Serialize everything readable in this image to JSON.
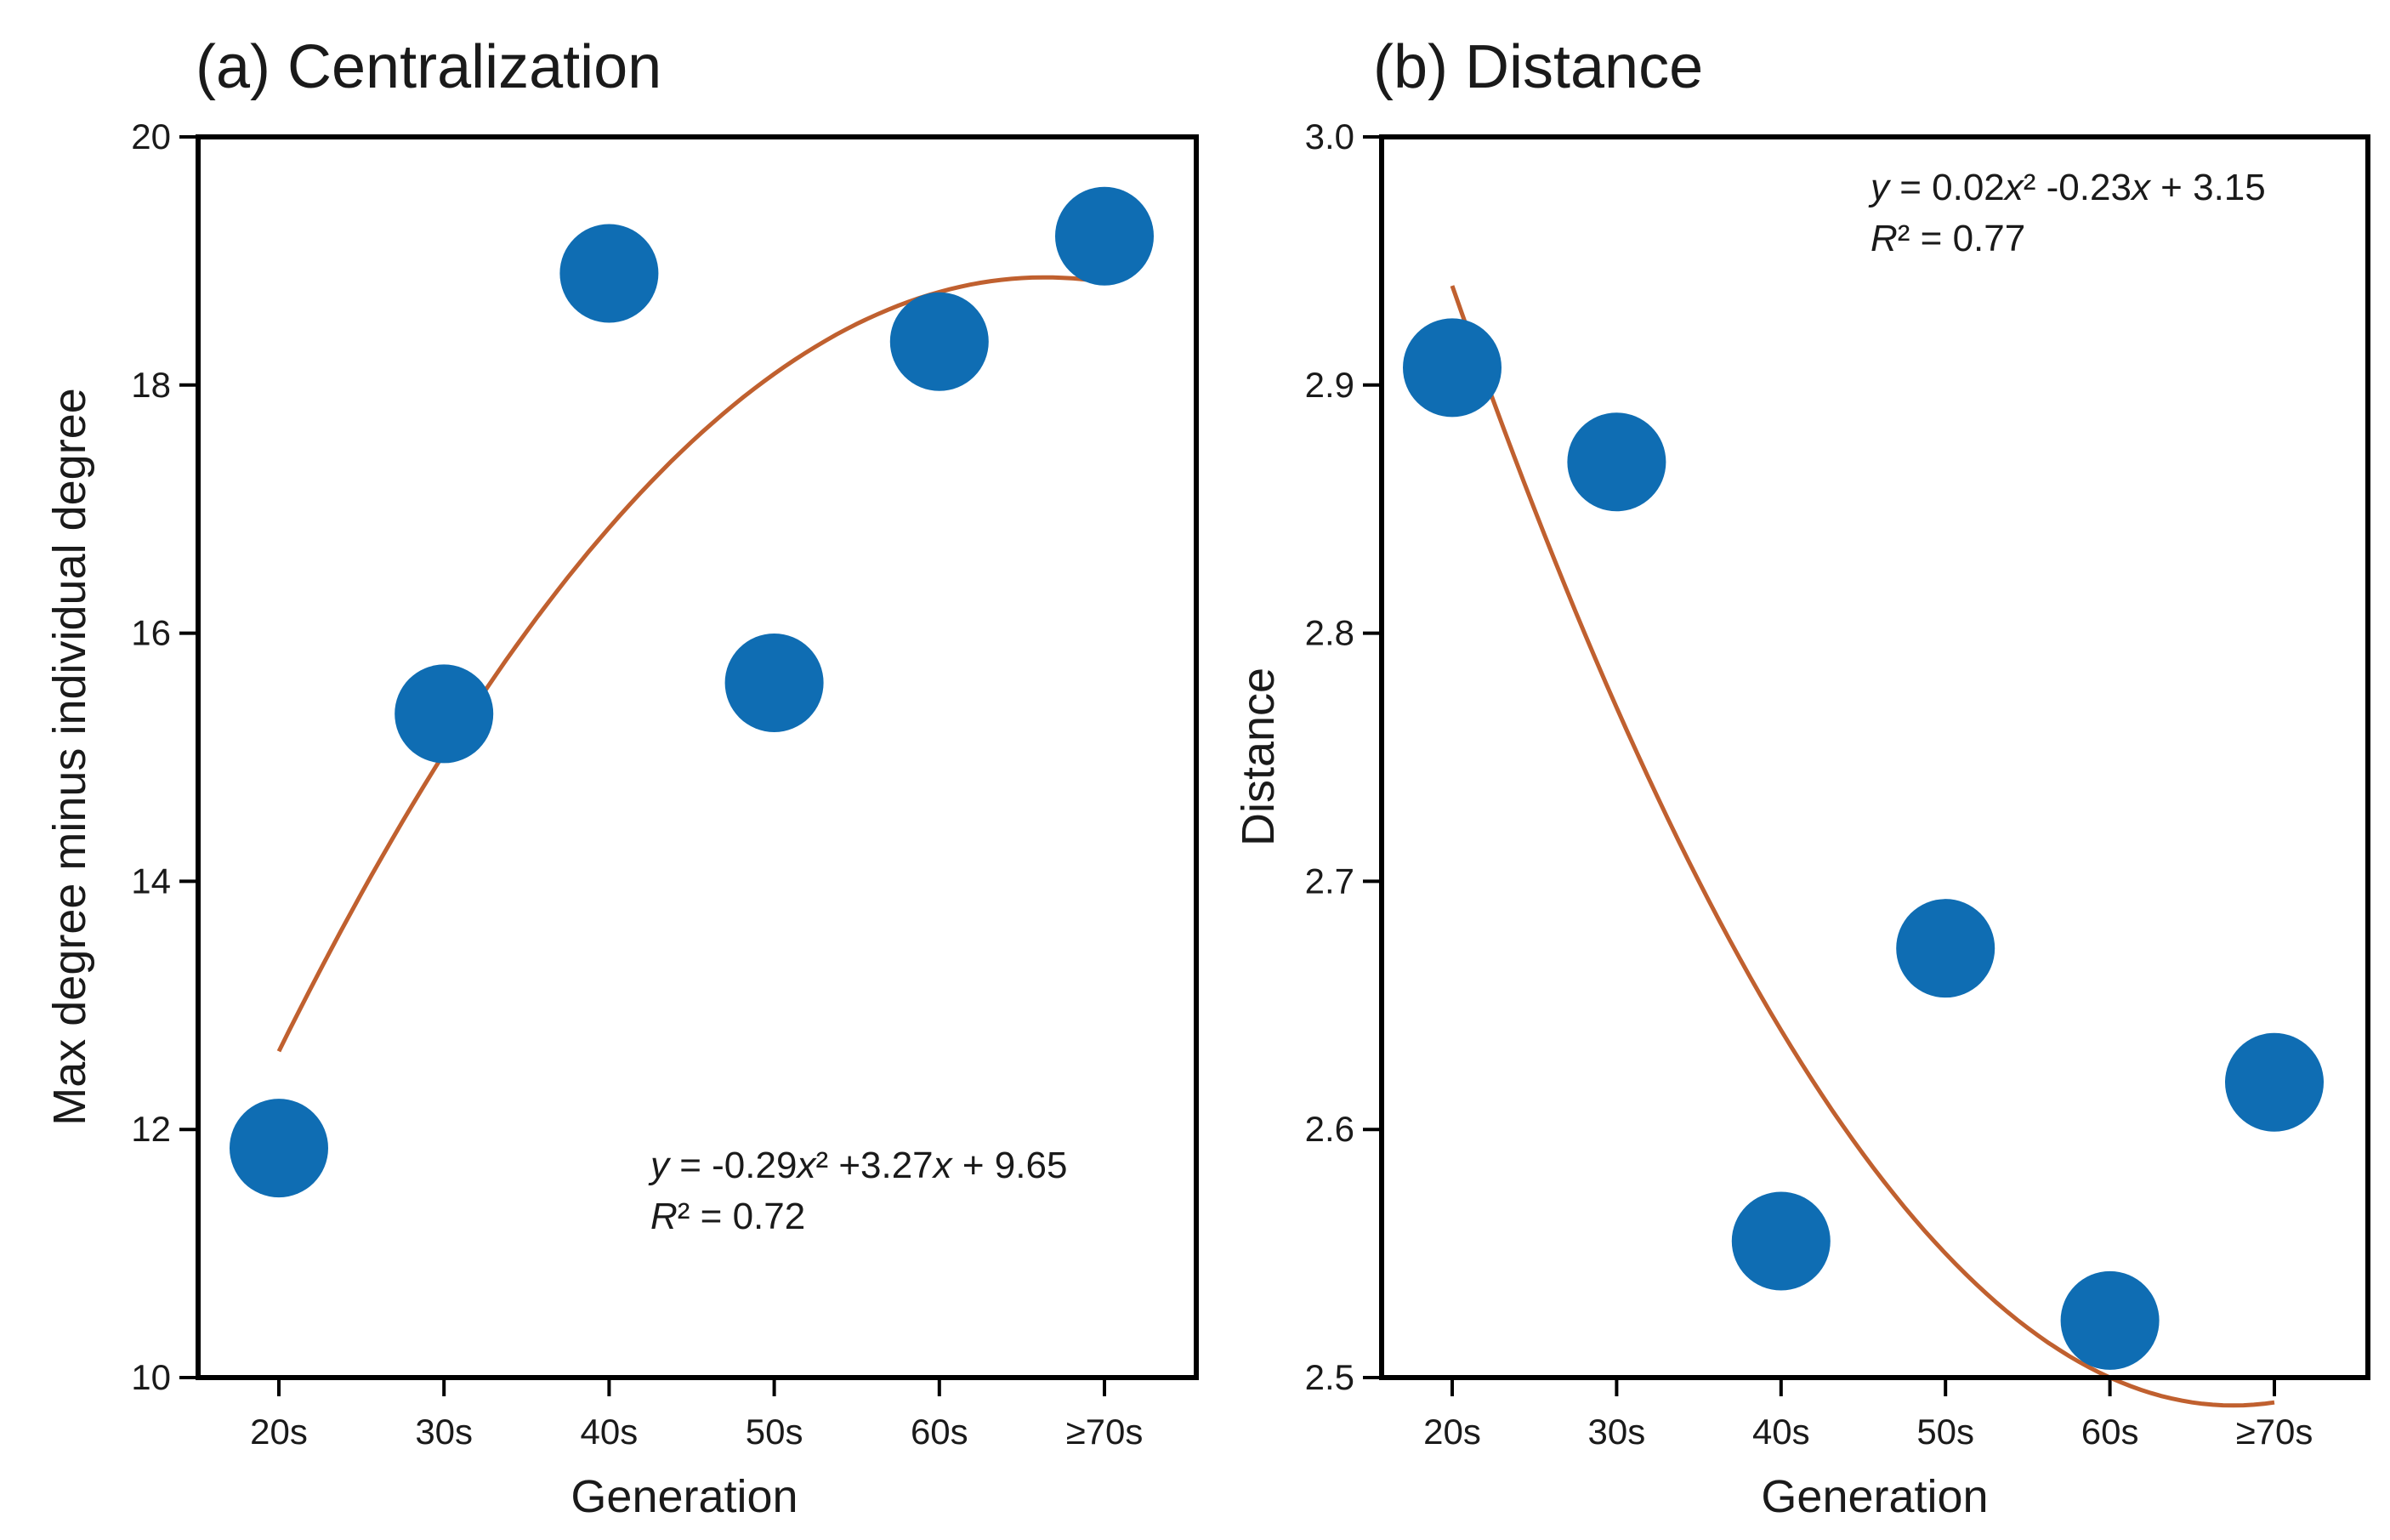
{
  "colors": {
    "point": "#0f6db3",
    "fit": "#c0602f"
  },
  "chart_data": [
    {
      "type": "scatter",
      "title": "(a) Centralization",
      "xlabel": "Generation",
      "ylabel": "Max degree minus individual degree",
      "categories": [
        "20s",
        "30s",
        "40s",
        "50s",
        "60s",
        "≥70s"
      ],
      "values": [
        11.85,
        15.35,
        18.9,
        15.6,
        18.35,
        19.2
      ],
      "ylim": [
        10,
        20
      ],
      "yticks": [
        "10",
        "12",
        "14",
        "16",
        "18",
        "20"
      ],
      "ytick_values": [
        10,
        12,
        14,
        16,
        18,
        20
      ],
      "fit": {
        "a": -0.29,
        "b": 3.27,
        "c": 9.65,
        "x_from": 1,
        "x_to": 6
      },
      "equation": {
        "y_var": "y",
        "rhs_a": " = -0.29",
        "x_var_a": "x",
        "rhs_b": "² +3.27",
        "x_var_b": "x",
        "rhs_c": " + 9.65",
        "r_var": "R",
        "r_rhs": "² = 0.72"
      },
      "legend": "bottom-right"
    },
    {
      "type": "scatter",
      "title": "(b) Distance",
      "xlabel": "Generation",
      "ylabel": "Distance",
      "categories": [
        "20s",
        "30s",
        "40s",
        "50s",
        "60s",
        "≥70s"
      ],
      "values": [
        2.907,
        2.869,
        2.555,
        2.673,
        2.523,
        2.619
      ],
      "ylim": [
        2.5,
        3.0
      ],
      "yticks": [
        "2.5",
        "2.6",
        "2.7",
        "2.8",
        "2.9",
        "3.0"
      ],
      "ytick_values": [
        2.5,
        2.6,
        2.7,
        2.8,
        2.9,
        3.0
      ],
      "fit": {
        "a": 0.02,
        "b": -0.23,
        "c": 3.15,
        "x_from": 1,
        "x_to": 6
      },
      "equation": {
        "y_var": "y",
        "rhs_a": " = 0.02",
        "x_var_a": "x",
        "rhs_b": "² -0.23",
        "x_var_b": "x",
        "rhs_c": " + 3.15",
        "r_var": "R",
        "r_rhs": "² = 0.77"
      },
      "legend": "top-right"
    }
  ]
}
